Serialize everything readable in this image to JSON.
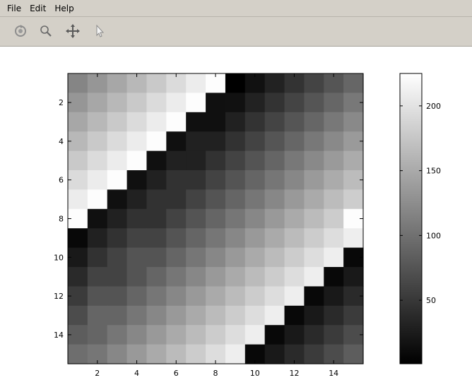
{
  "menubar": {
    "items": [
      {
        "label": "File",
        "name": "menu-file"
      },
      {
        "label": "Edit",
        "name": "menu-edit"
      },
      {
        "label": "Help",
        "name": "menu-help"
      }
    ]
  },
  "toolbar": {
    "tools": [
      {
        "name": "reset-view-icon"
      },
      {
        "name": "zoom-icon"
      },
      {
        "name": "pan-icon"
      },
      {
        "name": "pointer-icon"
      }
    ]
  },
  "chart_data": {
    "type": "heatmap",
    "colormap": "gray",
    "rows": 15,
    "cols": 15,
    "x_ticks": [
      2,
      4,
      6,
      8,
      10,
      12,
      14
    ],
    "y_ticks": [
      2,
      4,
      6,
      8,
      10,
      12,
      14
    ],
    "colorbar": {
      "min": 1,
      "max": 225,
      "ticks": [
        50,
        100,
        150,
        200
      ]
    },
    "values": [
      [
        118,
        133,
        148,
        163,
        178,
        193,
        208,
        223,
        1,
        16,
        31,
        46,
        61,
        76,
        91
      ],
      [
        133,
        148,
        163,
        178,
        193,
        208,
        223,
        15,
        16,
        31,
        46,
        61,
        76,
        91,
        106
      ],
      [
        148,
        163,
        178,
        193,
        208,
        223,
        15,
        15,
        30,
        46,
        61,
        76,
        91,
        106,
        121
      ],
      [
        163,
        178,
        193,
        208,
        223,
        15,
        30,
        30,
        45,
        60,
        76,
        91,
        106,
        121,
        136
      ],
      [
        178,
        193,
        208,
        223,
        15,
        30,
        30,
        45,
        60,
        75,
        90,
        106,
        121,
        136,
        151
      ],
      [
        193,
        208,
        223,
        15,
        30,
        45,
        45,
        60,
        75,
        90,
        105,
        120,
        136,
        151,
        166
      ],
      [
        208,
        223,
        15,
        30,
        45,
        45,
        60,
        75,
        90,
        105,
        120,
        135,
        150,
        166,
        181
      ],
      [
        223,
        15,
        30,
        45,
        45,
        60,
        75,
        90,
        105,
        120,
        135,
        150,
        165,
        180,
        223
      ],
      [
        8,
        30,
        45,
        60,
        60,
        75,
        90,
        105,
        120,
        135,
        150,
        165,
        180,
        195,
        210
      ],
      [
        23,
        45,
        60,
        75,
        75,
        90,
        105,
        120,
        135,
        150,
        165,
        180,
        195,
        210,
        8
      ],
      [
        38,
        60,
        60,
        75,
        90,
        105,
        120,
        135,
        150,
        165,
        180,
        195,
        210,
        8,
        23
      ],
      [
        53,
        75,
        75,
        90,
        105,
        120,
        135,
        150,
        165,
        180,
        195,
        210,
        8,
        23,
        38
      ],
      [
        68,
        90,
        90,
        105,
        120,
        135,
        150,
        165,
        180,
        195,
        210,
        8,
        23,
        38,
        53
      ],
      [
        83,
        90,
        105,
        120,
        135,
        150,
        165,
        180,
        195,
        210,
        8,
        23,
        38,
        53,
        68
      ],
      [
        98,
        105,
        120,
        135,
        150,
        165,
        180,
        195,
        210,
        8,
        23,
        38,
        53,
        68,
        83
      ]
    ]
  }
}
